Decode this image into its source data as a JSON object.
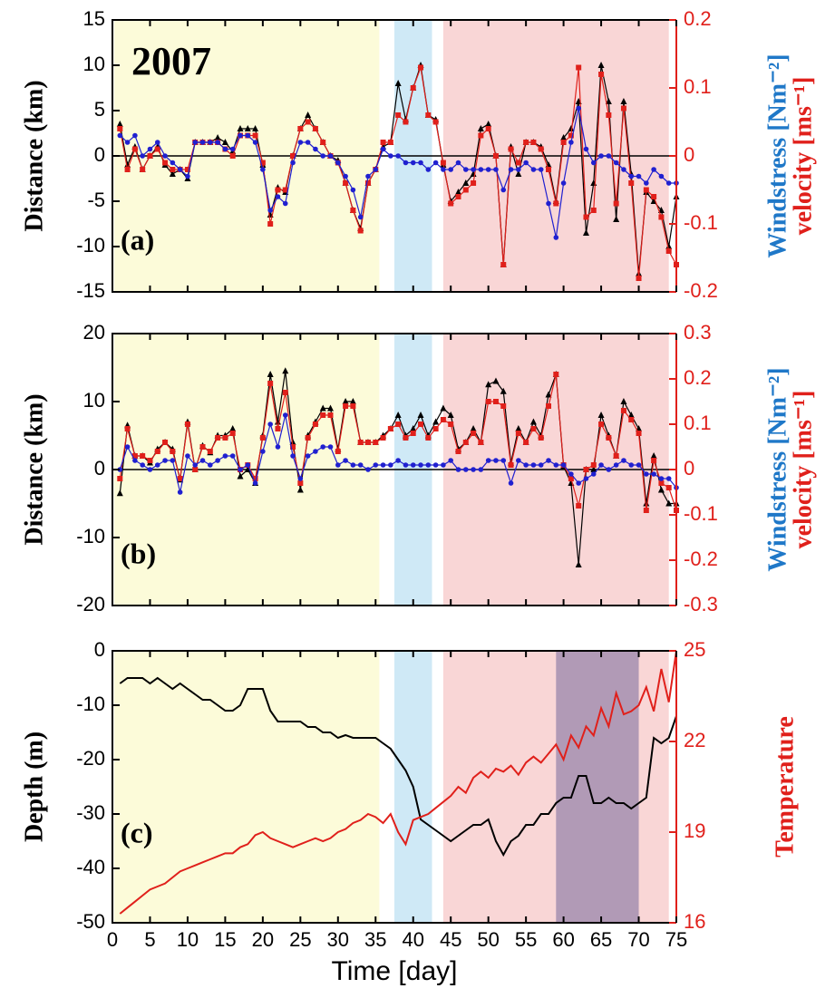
{
  "chart_data": [
    {
      "type": "line",
      "annotations": [
        "2007",
        "(a)"
      ],
      "ylabel": "Distance (km)",
      "y2label": [
        {
          "text": "Windstress [Nm⁻²]",
          "color": "#1f78c8"
        },
        {
          "text": "velocity [ms⁻¹]",
          "color": "#e0201b"
        }
      ],
      "xlim": [
        0,
        75
      ],
      "ylim": [
        -15,
        15
      ],
      "yticks": [
        -15,
        -10,
        -5,
        0,
        5,
        10,
        15
      ],
      "y2lim": [
        -0.2,
        0.2
      ],
      "y2ticks": [
        -0.2,
        -0.1,
        0,
        0.1,
        0.2
      ],
      "spans": [
        {
          "xmin": 0.2,
          "xmax": 35.5,
          "color": "#fcfbd9"
        },
        {
          "xmin": 37.5,
          "xmax": 42.5,
          "color": "#cfe9f6"
        },
        {
          "xmin": 44,
          "xmax": 74,
          "color": "#f9d6d6"
        }
      ],
      "x": [
        1,
        2,
        3,
        4,
        5,
        6,
        7,
        8,
        9,
        10,
        11,
        12,
        13,
        14,
        15,
        16,
        17,
        18,
        19,
        20,
        21,
        22,
        23,
        24,
        25,
        26,
        27,
        28,
        29,
        30,
        31,
        32,
        33,
        34,
        35,
        36,
        37,
        38,
        39,
        40,
        41,
        42,
        43,
        44,
        45,
        46,
        47,
        48,
        49,
        50,
        51,
        52,
        53,
        54,
        55,
        56,
        57,
        58,
        59,
        60,
        61,
        62,
        63,
        64,
        65,
        66,
        67,
        68,
        69,
        70,
        71,
        72,
        73,
        74,
        75
      ],
      "series": [
        {
          "color": "#000000",
          "marker": "triangle",
          "axis": "y",
          "values": [
            3.5,
            -1,
            1,
            -1.5,
            0,
            1,
            -1,
            -2,
            -1.5,
            -2.5,
            1.5,
            1.5,
            1.5,
            2,
            1.5,
            0.5,
            3,
            3,
            3,
            -1,
            -6.5,
            -3.5,
            -4,
            0,
            3,
            4.5,
            3,
            1.5,
            0,
            -0.5,
            -3,
            -6,
            -8,
            -3,
            -1.5,
            1,
            1.5,
            8,
            4,
            7.5,
            10,
            4.5,
            4,
            -1,
            -5,
            -4,
            -3,
            -2,
            3,
            3.5,
            0,
            -12,
            1,
            -2,
            1.5,
            1.5,
            1,
            -1,
            -5,
            2,
            3,
            6,
            -8.5,
            -3,
            10,
            6,
            -7,
            6,
            -2,
            -13,
            -4,
            -5,
            -6,
            -10,
            -4.5
          ]
        },
        {
          "color": "#e0201b",
          "marker": "square",
          "axis": "y2",
          "values": [
            0.04,
            -0.02,
            0.01,
            -0.02,
            0,
            0.01,
            -0.01,
            -0.02,
            -0.02,
            -0.02,
            0.02,
            0.02,
            0.02,
            0.02,
            0.01,
            0,
            0.03,
            0.03,
            0.03,
            -0.01,
            -0.1,
            -0.05,
            -0.05,
            0,
            0.04,
            0.05,
            0.04,
            0.02,
            0,
            -0.01,
            -0.04,
            -0.08,
            -0.11,
            -0.04,
            -0.02,
            0.02,
            0.02,
            0.06,
            0.05,
            0.1,
            0.13,
            0.06,
            0.05,
            -0.01,
            -0.07,
            -0.06,
            -0.05,
            -0.04,
            0.03,
            0.04,
            0,
            -0.16,
            0.01,
            -0.01,
            0.02,
            0.02,
            0.01,
            -0.02,
            -0.07,
            0.02,
            0.03,
            0.13,
            -0.09,
            -0.08,
            0.12,
            0.06,
            -0.07,
            0.07,
            -0.04,
            -0.18,
            -0.05,
            -0.06,
            -0.09,
            -0.14,
            -0.16
          ]
        },
        {
          "color": "#2020d0",
          "marker": "circle",
          "axis": "y2",
          "values": [
            0.03,
            0.02,
            0.03,
            0,
            0.01,
            0.02,
            0,
            -0.01,
            -0.02,
            -0.03,
            0.02,
            0.02,
            0.02,
            0.02,
            0.01,
            0.01,
            0.03,
            0.03,
            0.02,
            -0.02,
            -0.08,
            -0.06,
            -0.07,
            -0.01,
            0.02,
            0.02,
            0.01,
            0,
            0,
            -0.01,
            -0.03,
            -0.05,
            -0.09,
            -0.03,
            -0.02,
            0.01,
            0,
            0,
            -0.01,
            -0.01,
            -0.01,
            -0.02,
            -0.01,
            -0.02,
            -0.02,
            -0.01,
            -0.02,
            -0.02,
            -0.02,
            -0.02,
            -0.02,
            -0.05,
            -0.02,
            -0.02,
            -0.01,
            -0.02,
            -0.02,
            -0.07,
            -0.12,
            -0.04,
            0.02,
            0.07,
            0.01,
            -0.01,
            0,
            0,
            -0.01,
            -0.02,
            -0.03,
            -0.03,
            -0.04,
            -0.02,
            -0.03,
            -0.04,
            -0.04
          ]
        }
      ]
    },
    {
      "type": "line",
      "annotations": [
        "(b)"
      ],
      "ylabel": "Distance (km)",
      "y2label": [
        {
          "text": "Windstress [Nm⁻²]",
          "color": "#1f78c8"
        },
        {
          "text": "velocity [ms⁻¹]",
          "color": "#e0201b"
        }
      ],
      "xlim": [
        0,
        75
      ],
      "ylim": [
        -20,
        20
      ],
      "yticks": [
        -20,
        -10,
        0,
        10,
        20
      ],
      "y2lim": [
        -0.3,
        0.3
      ],
      "y2ticks": [
        -0.3,
        -0.2,
        -0.1,
        0,
        0.1,
        0.2,
        0.3
      ],
      "spans": [
        {
          "xmin": 0.2,
          "xmax": 35.5,
          "color": "#fcfbd9"
        },
        {
          "xmin": 37.5,
          "xmax": 42.5,
          "color": "#cfe9f6"
        },
        {
          "xmin": 44,
          "xmax": 74,
          "color": "#f9d6d6"
        }
      ],
      "x": [
        1,
        2,
        3,
        4,
        5,
        6,
        7,
        8,
        9,
        10,
        11,
        12,
        13,
        14,
        15,
        16,
        17,
        18,
        19,
        20,
        21,
        22,
        23,
        24,
        25,
        26,
        27,
        28,
        29,
        30,
        31,
        32,
        33,
        34,
        35,
        36,
        37,
        38,
        39,
        40,
        41,
        42,
        43,
        44,
        45,
        46,
        47,
        48,
        49,
        50,
        51,
        52,
        53,
        54,
        55,
        56,
        57,
        58,
        59,
        60,
        61,
        62,
        63,
        64,
        65,
        66,
        67,
        68,
        69,
        70,
        71,
        72,
        73,
        74,
        75
      ],
      "series": [
        {
          "color": "#000000",
          "marker": "triangle",
          "axis": "y",
          "values": [
            -3.5,
            6.5,
            2,
            2,
            1,
            3,
            4,
            3,
            -1.5,
            7,
            0,
            3.5,
            2.5,
            5,
            5,
            6,
            -1,
            0,
            -2,
            5,
            14,
            7,
            14.5,
            4,
            -3,
            5,
            7,
            9,
            9,
            3,
            10,
            10,
            4,
            4,
            4,
            5,
            6,
            8,
            5,
            6,
            8,
            5,
            7,
            9,
            8,
            3,
            4,
            6,
            4,
            12.5,
            13,
            11.5,
            1,
            6,
            4,
            7,
            5,
            11,
            14,
            0.5,
            -2,
            -14,
            0,
            0,
            8,
            5,
            2,
            10,
            8,
            6,
            -5,
            2,
            -3,
            -5,
            -5
          ]
        },
        {
          "color": "#e0201b",
          "marker": "square",
          "axis": "y2",
          "values": [
            -0.02,
            0.09,
            0.03,
            0.03,
            0.02,
            0.04,
            0.06,
            0.04,
            -0.02,
            0.1,
            0,
            0.05,
            0.04,
            0.07,
            0.07,
            0.08,
            0,
            0.01,
            -0.02,
            0.07,
            0.19,
            0.09,
            0.17,
            0.05,
            -0.03,
            0.07,
            0.1,
            0.12,
            0.12,
            0.04,
            0.14,
            0.14,
            0.06,
            0.06,
            0.06,
            0.07,
            0.09,
            0.1,
            0.07,
            0.08,
            0.1,
            0.07,
            0.09,
            0.11,
            0.1,
            0.04,
            0.06,
            0.08,
            0.06,
            0.15,
            0.15,
            0.14,
            0.01,
            0.08,
            0.06,
            0.09,
            0.07,
            0.14,
            0.21,
            0.01,
            -0.02,
            -0.08,
            0,
            0.01,
            0.1,
            0.07,
            0.03,
            0.13,
            0.11,
            0.08,
            -0.09,
            0.02,
            -0.03,
            -0.04,
            -0.09
          ]
        },
        {
          "color": "#2020d0",
          "marker": "circle",
          "axis": "y2",
          "values": [
            0,
            0.05,
            0.02,
            0.01,
            0,
            0.01,
            0.02,
            0.02,
            -0.05,
            0.03,
            0.01,
            0.02,
            0.01,
            0.02,
            0.03,
            0.03,
            0,
            0.01,
            -0.03,
            0.04,
            0.1,
            0.05,
            0.12,
            0.03,
            -0.02,
            0.03,
            0.04,
            0.05,
            0.05,
            0.01,
            0.02,
            0.01,
            0.01,
            0,
            0.01,
            0.01,
            0.01,
            0.02,
            0.01,
            0.01,
            0.01,
            0.01,
            0.01,
            0.01,
            0.02,
            0,
            0,
            0,
            0,
            0.02,
            0.02,
            0.02,
            -0.03,
            0.02,
            0.01,
            0.01,
            0.01,
            0.02,
            0.01,
            0.01,
            -0.01,
            -0.03,
            -0.02,
            -0.01,
            0.01,
            0,
            0.01,
            0.02,
            0.01,
            0.01,
            -0.01,
            -0.01,
            -0.02,
            -0.02,
            -0.04
          ]
        }
      ]
    },
    {
      "type": "line",
      "annotations": [
        "(c)"
      ],
      "ylabel": "Depth (m)",
      "xlabel": "Time [day]",
      "y2label": [
        {
          "text": "Temperature",
          "color": "#e0201b"
        }
      ],
      "xlim": [
        0,
        75
      ],
      "xticks": [
        0,
        5,
        10,
        15,
        20,
        25,
        30,
        35,
        40,
        45,
        50,
        55,
        60,
        65,
        70,
        75
      ],
      "ylim": [
        -50,
        0
      ],
      "yticks": [
        -50,
        -40,
        -30,
        -20,
        -10,
        0
      ],
      "y2lim": [
        16,
        25
      ],
      "y2ticks": [
        16,
        19,
        22,
        25
      ],
      "spans": [
        {
          "xmin": 0.2,
          "xmax": 35.5,
          "color": "#fcfbd9"
        },
        {
          "xmin": 37.5,
          "xmax": 42.5,
          "color": "#cfe9f6"
        },
        {
          "xmin": 44,
          "xmax": 74,
          "color": "#f9d6d6"
        },
        {
          "xmin": 59,
          "xmax": 70,
          "color": "#a58fb0"
        }
      ],
      "x": [
        1,
        2,
        3,
        4,
        5,
        6,
        7,
        8,
        9,
        10,
        11,
        12,
        13,
        14,
        15,
        16,
        17,
        18,
        19,
        20,
        21,
        22,
        23,
        24,
        25,
        26,
        27,
        28,
        29,
        30,
        31,
        32,
        33,
        34,
        35,
        36,
        37,
        38,
        39,
        40,
        41,
        42,
        43,
        44,
        45,
        46,
        47,
        48,
        49,
        50,
        51,
        52,
        53,
        54,
        55,
        56,
        57,
        58,
        59,
        60,
        61,
        62,
        63,
        64,
        65,
        66,
        67,
        68,
        69,
        70,
        71,
        72,
        73,
        74,
        75
      ],
      "series": [
        {
          "color": "#000000",
          "marker": "none",
          "axis": "y",
          "values": [
            -6,
            -5,
            -5,
            -5,
            -6,
            -5,
            -6,
            -7,
            -6,
            -7,
            -8,
            -9,
            -9,
            -10,
            -11,
            -11,
            -10,
            -7,
            -7,
            -7,
            -11,
            -13,
            -13,
            -13,
            -13,
            -14,
            -14,
            -15,
            -15,
            -16,
            -15.5,
            -16,
            -16,
            -16,
            -16,
            -17,
            -18,
            -20,
            -22,
            -25,
            -31,
            -32,
            -33,
            -34,
            -35,
            -34,
            -33,
            -32,
            -32,
            -31,
            -35,
            -37.5,
            -35,
            -34,
            -32,
            -32,
            -30,
            -30,
            -28,
            -27,
            -27,
            -23,
            -23,
            -28,
            -28,
            -27,
            -28,
            -28,
            -29,
            -28,
            -27,
            -16,
            -17,
            -16,
            -12
          ]
        },
        {
          "color": "#e0201b",
          "marker": "none",
          "axis": "y2",
          "values": [
            16.3,
            16.5,
            16.7,
            16.9,
            17.1,
            17.2,
            17.3,
            17.5,
            17.7,
            17.8,
            17.9,
            18,
            18.1,
            18.2,
            18.3,
            18.3,
            18.5,
            18.6,
            18.9,
            19,
            18.8,
            18.7,
            18.6,
            18.5,
            18.6,
            18.7,
            18.8,
            18.7,
            18.8,
            19,
            19.1,
            19.3,
            19.4,
            19.6,
            19.5,
            19.3,
            19.6,
            19,
            18.6,
            19.4,
            19.5,
            19.6,
            19.8,
            20,
            20.2,
            20.5,
            20.3,
            20.8,
            21,
            20.8,
            21.1,
            21,
            21.2,
            20.9,
            21.3,
            21.5,
            21.3,
            21.6,
            21.9,
            21.4,
            22.2,
            21.8,
            22.5,
            22.2,
            23.1,
            22.5,
            23.6,
            22.9,
            23,
            23.2,
            23.8,
            23,
            24.4,
            23.3,
            25
          ]
        }
      ]
    }
  ]
}
